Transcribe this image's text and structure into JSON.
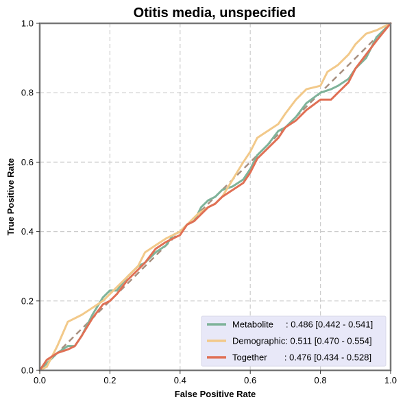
{
  "chart_data": {
    "type": "line",
    "title": "Otitis media, unspecified",
    "xlabel": "False Positive Rate",
    "ylabel": "True Positive Rate",
    "xlim": [
      0,
      1
    ],
    "ylim": [
      0,
      1
    ],
    "x_ticks": [
      "0.0",
      "0.2",
      "0.4",
      "0.6",
      "0.8",
      "1.0"
    ],
    "y_ticks": [
      "0.0",
      "0.2",
      "0.4",
      "0.6",
      "0.8",
      "1.0"
    ],
    "grid": true,
    "legend_position": "bottom-right",
    "diagonal": {
      "x": [
        0,
        1
      ],
      "y": [
        0,
        1
      ],
      "color": "#a89080",
      "style": "dashed"
    },
    "series": [
      {
        "name": "Metabolite",
        "legend_label": "Metabolite     : 0.486 [0.442 - 0.541]",
        "color": "#7fb39a",
        "x": [
          0.0,
          0.02,
          0.05,
          0.08,
          0.1,
          0.12,
          0.15,
          0.18,
          0.2,
          0.22,
          0.25,
          0.28,
          0.3,
          0.33,
          0.36,
          0.38,
          0.4,
          0.42,
          0.44,
          0.46,
          0.48,
          0.5,
          0.52,
          0.55,
          0.58,
          0.6,
          0.62,
          0.65,
          0.68,
          0.7,
          0.73,
          0.76,
          0.8,
          0.83,
          0.85,
          0.88,
          0.9,
          0.93,
          0.96,
          1.0
        ],
        "y": [
          0.0,
          0.02,
          0.05,
          0.07,
          0.07,
          0.1,
          0.16,
          0.21,
          0.23,
          0.23,
          0.27,
          0.3,
          0.31,
          0.34,
          0.36,
          0.39,
          0.4,
          0.42,
          0.43,
          0.47,
          0.49,
          0.5,
          0.52,
          0.53,
          0.55,
          0.58,
          0.62,
          0.65,
          0.69,
          0.7,
          0.73,
          0.77,
          0.8,
          0.81,
          0.82,
          0.84,
          0.87,
          0.9,
          0.96,
          1.0
        ]
      },
      {
        "name": "Demographic",
        "legend_label": "Demographic: 0.511 [0.470 - 0.554]",
        "color": "#f2c98a",
        "x": [
          0.0,
          0.02,
          0.05,
          0.08,
          0.1,
          0.12,
          0.15,
          0.18,
          0.2,
          0.22,
          0.25,
          0.28,
          0.3,
          0.33,
          0.36,
          0.38,
          0.4,
          0.42,
          0.45,
          0.48,
          0.5,
          0.52,
          0.55,
          0.58,
          0.6,
          0.62,
          0.65,
          0.68,
          0.7,
          0.73,
          0.76,
          0.8,
          0.82,
          0.85,
          0.88,
          0.9,
          0.93,
          0.96,
          1.0
        ],
        "y": [
          0.0,
          0.01,
          0.07,
          0.14,
          0.15,
          0.16,
          0.18,
          0.2,
          0.22,
          0.24,
          0.27,
          0.3,
          0.34,
          0.36,
          0.38,
          0.39,
          0.4,
          0.42,
          0.45,
          0.47,
          0.48,
          0.5,
          0.55,
          0.6,
          0.63,
          0.67,
          0.69,
          0.71,
          0.74,
          0.78,
          0.81,
          0.82,
          0.86,
          0.88,
          0.91,
          0.94,
          0.97,
          0.98,
          1.0
        ]
      },
      {
        "name": "Together",
        "legend_label": "Together       : 0.476 [0.434 - 0.528]",
        "color": "#e07055",
        "x": [
          0.0,
          0.02,
          0.05,
          0.08,
          0.1,
          0.12,
          0.15,
          0.18,
          0.2,
          0.22,
          0.25,
          0.28,
          0.3,
          0.33,
          0.36,
          0.38,
          0.4,
          0.42,
          0.44,
          0.46,
          0.48,
          0.5,
          0.52,
          0.55,
          0.58,
          0.6,
          0.62,
          0.65,
          0.68,
          0.7,
          0.73,
          0.76,
          0.8,
          0.83,
          0.85,
          0.88,
          0.9,
          0.93,
          0.96,
          1.0
        ],
        "y": [
          0.0,
          0.03,
          0.05,
          0.06,
          0.07,
          0.1,
          0.15,
          0.19,
          0.2,
          0.22,
          0.26,
          0.29,
          0.31,
          0.35,
          0.37,
          0.38,
          0.39,
          0.42,
          0.43,
          0.45,
          0.47,
          0.48,
          0.5,
          0.52,
          0.54,
          0.57,
          0.61,
          0.64,
          0.67,
          0.7,
          0.72,
          0.75,
          0.78,
          0.78,
          0.8,
          0.83,
          0.87,
          0.91,
          0.95,
          1.0
        ]
      }
    ]
  }
}
